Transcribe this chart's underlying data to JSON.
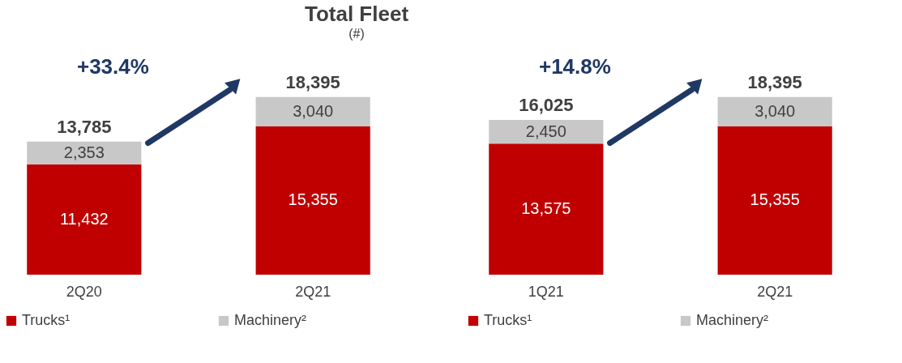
{
  "chart_data": [
    {
      "type": "bar",
      "title": "Total Fleet",
      "subtitle": "(#)",
      "stacked": true,
      "categories": [
        "2Q20",
        "2Q21"
      ],
      "legend": "bottom",
      "totals": [
        "13,785",
        "18,395"
      ],
      "annotations": [
        "+33.4%"
      ],
      "series": [
        {
          "name": "Trucks¹",
          "color": "#c00000",
          "values": [
            11432,
            15355
          ],
          "value_labels": [
            "11,432",
            "15,355"
          ]
        },
        {
          "name": "Machinery²",
          "color": "#c8c8c8",
          "values": [
            2353,
            3040
          ],
          "value_labels": [
            "2,353",
            "3,040"
          ]
        }
      ]
    },
    {
      "type": "bar",
      "stacked": true,
      "categories": [
        "1Q21",
        "2Q21"
      ],
      "legend": "bottom",
      "totals": [
        "16,025",
        "18,395"
      ],
      "annotations": [
        "+14.8%"
      ],
      "series": [
        {
          "name": "Trucks¹",
          "color": "#c00000",
          "values": [
            13575,
            15355
          ],
          "value_labels": [
            "13,575",
            "15,355"
          ]
        },
        {
          "name": "Machinery²",
          "color": "#c8c8c8",
          "values": [
            2450,
            3040
          ],
          "value_labels": [
            "2,450",
            "3,040"
          ]
        }
      ]
    }
  ]
}
